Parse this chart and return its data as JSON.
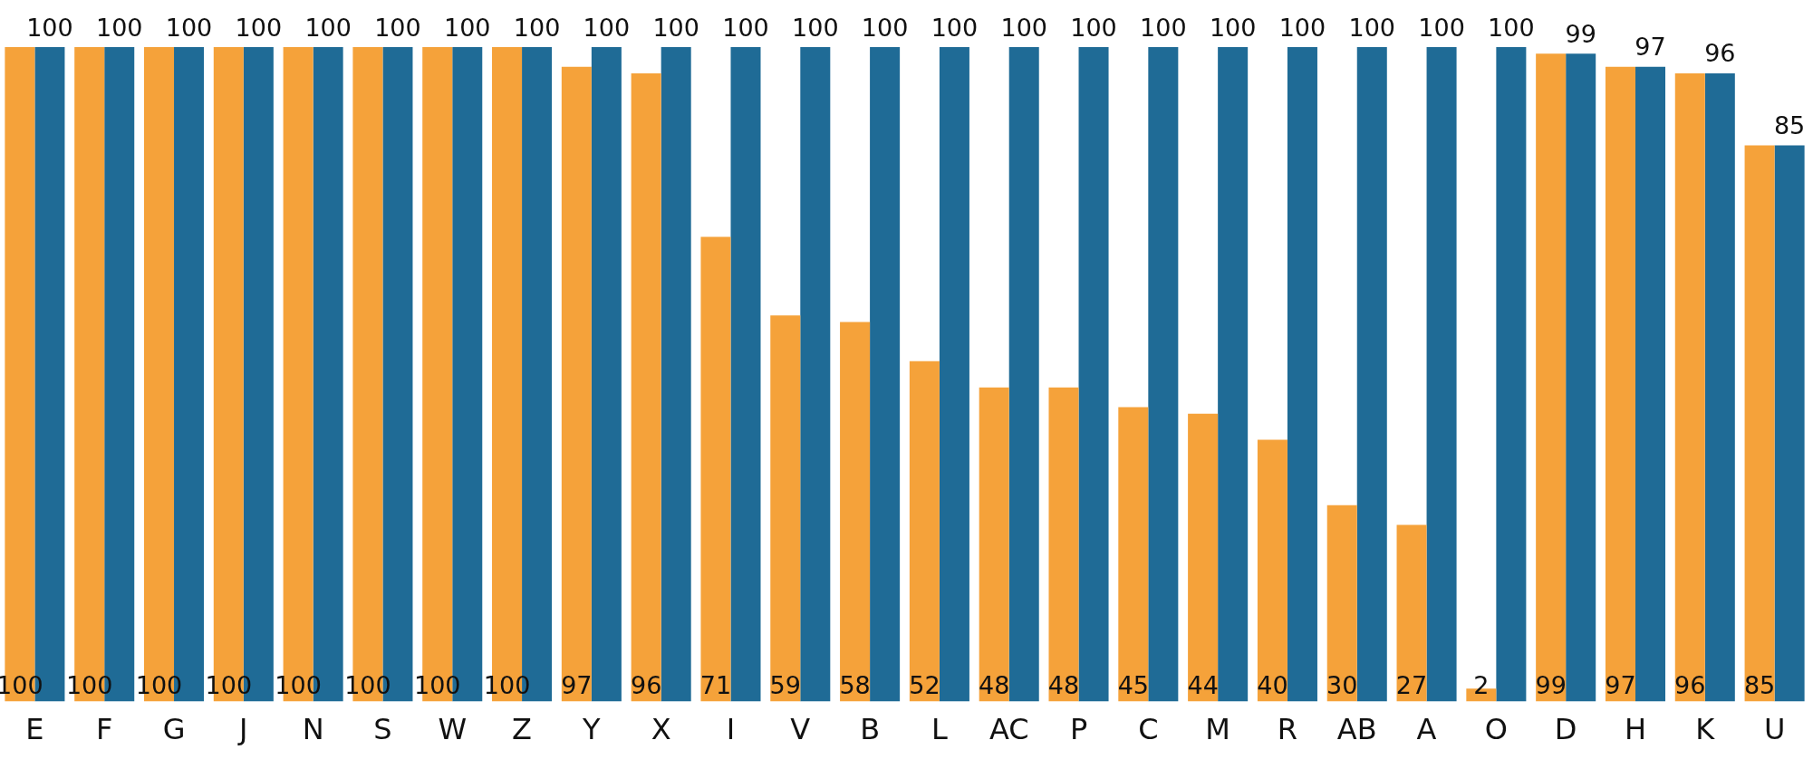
{
  "chart_data": {
    "type": "bar",
    "categories": [
      "E",
      "F",
      "G",
      "J",
      "N",
      "S",
      "W",
      "Z",
      "Y",
      "X",
      "I",
      "V",
      "B",
      "L",
      "AC",
      "P",
      "C",
      "M",
      "R",
      "AB",
      "A",
      "O",
      "D",
      "H",
      "K",
      "U"
    ],
    "series": [
      {
        "color": "#f5a23a",
        "values": [
          100,
          100,
          100,
          100,
          100,
          100,
          100,
          100,
          97,
          96,
          71,
          59,
          58,
          52,
          48,
          48,
          45,
          44,
          40,
          30,
          27,
          2,
          99,
          97,
          96,
          85
        ]
      },
      {
        "color": "#1f6b96",
        "values": [
          100,
          100,
          100,
          100,
          100,
          100,
          100,
          100,
          100,
          100,
          100,
          100,
          100,
          100,
          100,
          100,
          100,
          100,
          100,
          100,
          100,
          100,
          99,
          97,
          96,
          85
        ]
      }
    ],
    "data_labels": true,
    "grid": false,
    "legend": false
  }
}
